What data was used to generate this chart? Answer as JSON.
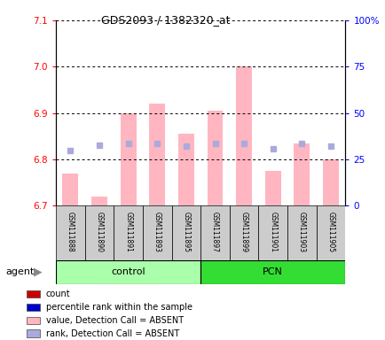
{
  "title": "GDS2093 / 1382320_at",
  "samples": [
    "GSM111888",
    "GSM111890",
    "GSM111891",
    "GSM111893",
    "GSM111895",
    "GSM111897",
    "GSM111899",
    "GSM111901",
    "GSM111903",
    "GSM111905"
  ],
  "bar_bottom": 6.7,
  "bar_values": [
    6.77,
    6.72,
    6.9,
    6.92,
    6.855,
    6.905,
    7.0,
    6.775,
    6.835,
    6.8
  ],
  "rank_values": [
    6.82,
    6.83,
    6.835,
    6.835,
    6.828,
    6.835,
    6.835,
    6.822,
    6.835,
    6.828
  ],
  "ylim_left": [
    6.7,
    7.1
  ],
  "ylim_right": [
    0,
    100
  ],
  "yticks_left": [
    6.7,
    6.8,
    6.9,
    7.0,
    7.1
  ],
  "yticks_right": [
    0,
    25,
    50,
    75,
    100
  ],
  "ytick_labels_right": [
    "0",
    "25",
    "50",
    "75",
    "100%"
  ],
  "bar_color": "#ffb6c1",
  "rank_dot_color": "#aaaadd",
  "control_color": "#aaffaa",
  "pcn_color": "#33dd33",
  "sample_box_color": "#cccccc",
  "legend_items": [
    {
      "color": "#cc0000",
      "label": "count"
    },
    {
      "color": "#0000cc",
      "label": "percentile rank within the sample"
    },
    {
      "color": "#ffb6c1",
      "label": "value, Detection Call = ABSENT"
    },
    {
      "color": "#aaaadd",
      "label": "rank, Detection Call = ABSENT"
    }
  ],
  "agent_label": "agent"
}
